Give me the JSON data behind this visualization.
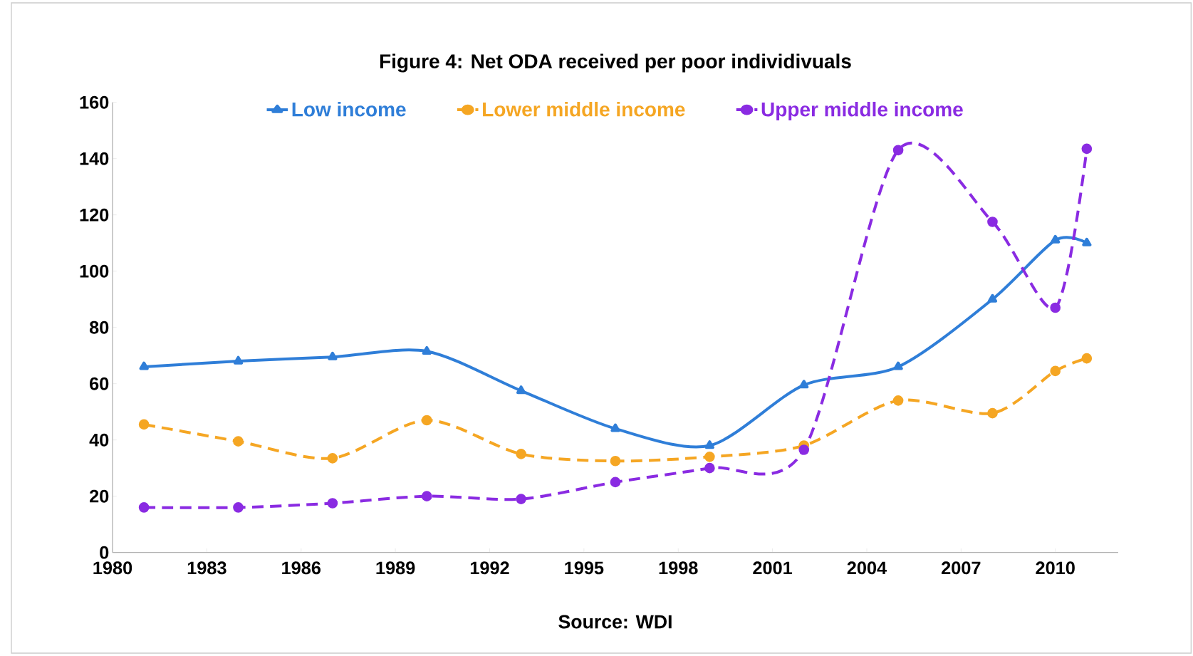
{
  "chart_data": {
    "type": "line",
    "title": "Figure 4: Net ODA received per poor individivuals",
    "annotations": [
      "Source: WDI"
    ],
    "x": [
      1981,
      1984,
      1987,
      1990,
      1993,
      1996,
      1999,
      2002,
      2005,
      2008,
      2010,
      2011
    ],
    "series": [
      {
        "name": "Low income",
        "color": "#2f7ed8",
        "marker": "triangle",
        "line_style": "solid",
        "values": [
          66,
          68,
          69.5,
          71.5,
          57.5,
          44,
          38,
          59.5,
          66,
          90,
          111,
          110
        ]
      },
      {
        "name": "Lower middle income",
        "color": "#f5a623",
        "marker": "circle",
        "line_style": "dashed",
        "values": [
          45.5,
          39.5,
          33.5,
          47,
          35,
          32.5,
          34,
          38,
          54,
          49.5,
          64.5,
          69
        ]
      },
      {
        "name": "Upper middle income",
        "color": "#8a2be2",
        "marker": "circle",
        "line_style": "dashed",
        "values": [
          16,
          16,
          17.5,
          20,
          19,
          25,
          30,
          36.5,
          143,
          117.5,
          87,
          143.5
        ]
      }
    ],
    "xlim": [
      1980,
      2012
    ],
    "ylim": [
      0,
      160
    ],
    "xticks": [
      1980,
      1983,
      1986,
      1989,
      1992,
      1995,
      1998,
      2001,
      2004,
      2007,
      2010
    ],
    "yticks": [
      0,
      20,
      40,
      60,
      80,
      100,
      120,
      140,
      160
    ],
    "grid": false,
    "legend": "top"
  }
}
